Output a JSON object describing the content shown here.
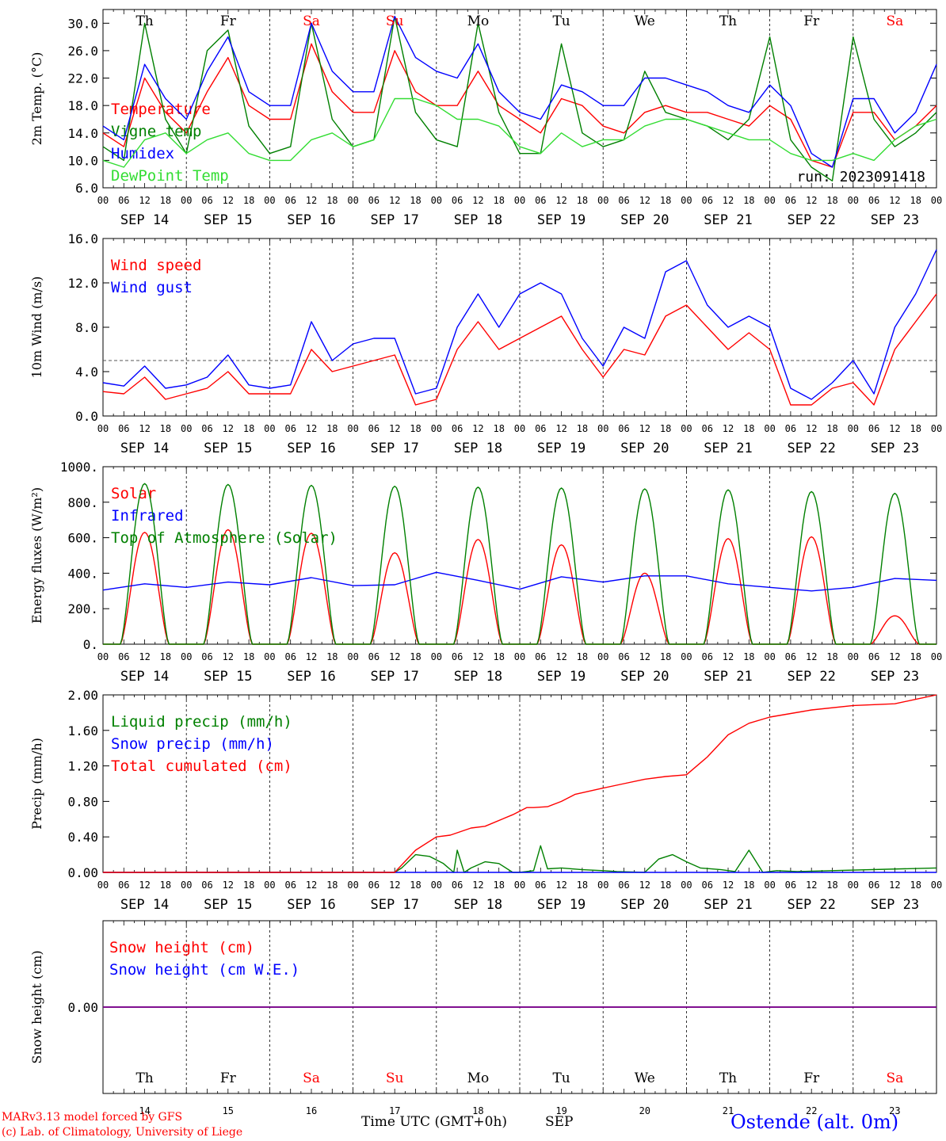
{
  "run_label": "run: 2023091418",
  "footer": {
    "model": "MARv3.13 model forced by GFS",
    "credit": "(c) Lab. of Climatology, University of Liege",
    "station": "Ostende (alt. 0m)",
    "xlabel": "Time UTC (GMT+0h)",
    "month": "SEP"
  },
  "days": {
    "names": [
      "Th",
      "Fr",
      "Sa",
      "Su",
      "Mo",
      "Tu",
      "We",
      "Th",
      "Fr",
      "Sa"
    ],
    "dates": [
      "SEP 14",
      "SEP 15",
      "SEP 16",
      "SEP 17",
      "SEP 18",
      "SEP 19",
      "SEP 20",
      "SEP 21",
      "SEP 22",
      "SEP 23"
    ],
    "numbers": [
      "14",
      "15",
      "16",
      "17",
      "18",
      "19",
      "20",
      "21",
      "22",
      "23"
    ],
    "hour_ticks": [
      "00",
      "06",
      "12",
      "18"
    ],
    "weekend_color": "#ff0000"
  },
  "colors": {
    "red": "#ff0000",
    "green": "#008000",
    "blue": "#0000ff",
    "lightgreen": "#33dd33",
    "purple": "#800080"
  },
  "chart_data": [
    {
      "type": "line",
      "id": "temp",
      "ylabel": "2m Temp. (°C)",
      "ylim": [
        6.0,
        32.0
      ],
      "yticks": [
        "6.0",
        "10.0",
        "14.0",
        "18.0",
        "22.0",
        "26.0",
        "30.0"
      ],
      "series": [
        {
          "name": "Temperature",
          "color": "#ff0000",
          "x": [
            0,
            6,
            12,
            18,
            24,
            30,
            36,
            42,
            48,
            54,
            60,
            66,
            72,
            78,
            84,
            90,
            96,
            102,
            108,
            114,
            120,
            126,
            132,
            138,
            144,
            150,
            156,
            162,
            168,
            174,
            180,
            186,
            192,
            198,
            204,
            210,
            216,
            222,
            228,
            234,
            240
          ],
          "y": [
            14,
            12,
            22,
            17,
            14,
            20,
            25,
            18,
            16,
            16,
            27,
            20,
            17,
            17,
            26,
            20,
            18,
            18,
            23,
            18,
            16,
            14,
            19,
            18,
            15,
            14,
            17,
            18,
            17,
            17,
            16,
            15,
            18,
            16,
            10,
            9,
            17,
            17,
            13,
            15,
            18
          ]
        },
        {
          "name": "Vigne temp",
          "color": "#008000",
          "x": [
            0,
            6,
            12,
            18,
            24,
            30,
            36,
            42,
            48,
            54,
            60,
            66,
            72,
            78,
            84,
            90,
            96,
            102,
            108,
            114,
            120,
            126,
            132,
            138,
            144,
            150,
            156,
            162,
            168,
            174,
            180,
            186,
            192,
            198,
            204,
            210,
            216,
            222,
            228,
            234,
            240
          ],
          "y": [
            12,
            10,
            30,
            16,
            11,
            26,
            29,
            15,
            11,
            12,
            30,
            16,
            12,
            13,
            31,
            17,
            13,
            12,
            30,
            17,
            11,
            11,
            27,
            14,
            12,
            13,
            23,
            17,
            16,
            15,
            13,
            16,
            28,
            13,
            9,
            7,
            28,
            16,
            12,
            14,
            17
          ]
        },
        {
          "name": "Humidex",
          "color": "#0000ff",
          "x": [
            0,
            6,
            12,
            18,
            24,
            30,
            36,
            42,
            48,
            54,
            60,
            66,
            72,
            78,
            84,
            90,
            96,
            102,
            108,
            114,
            120,
            126,
            132,
            138,
            144,
            150,
            156,
            162,
            168,
            174,
            180,
            186,
            192,
            198,
            204,
            210,
            216,
            222,
            228,
            234,
            240
          ],
          "y": [
            15,
            13,
            24,
            19,
            16,
            23,
            28,
            20,
            18,
            18,
            30,
            23,
            20,
            20,
            31,
            25,
            23,
            22,
            27,
            20,
            17,
            16,
            21,
            20,
            18,
            18,
            22,
            22,
            21,
            20,
            18,
            17,
            21,
            18,
            11,
            9,
            19,
            19,
            14,
            17,
            24
          ]
        },
        {
          "name": "DewPoint Temp",
          "color": "#33dd33",
          "x": [
            0,
            6,
            12,
            18,
            24,
            30,
            36,
            42,
            48,
            54,
            60,
            66,
            72,
            78,
            84,
            90,
            96,
            102,
            108,
            114,
            120,
            126,
            132,
            138,
            144,
            150,
            156,
            162,
            168,
            174,
            180,
            186,
            192,
            198,
            204,
            210,
            216,
            222,
            228,
            234,
            240
          ],
          "y": [
            10,
            9,
            13,
            14,
            11,
            13,
            14,
            11,
            10,
            10,
            13,
            14,
            12,
            13,
            19,
            19,
            18,
            16,
            16,
            15,
            12,
            11,
            14,
            12,
            13,
            13,
            15,
            16,
            16,
            15,
            14,
            13,
            13,
            11,
            10,
            10,
            11,
            10,
            13,
            15,
            16
          ]
        }
      ]
    },
    {
      "type": "line",
      "id": "wind",
      "ylabel": "10m Wind (m/s)",
      "ylim": [
        0,
        16
      ],
      "yticks": [
        "0.0",
        "4.0",
        "8.0",
        "12.0",
        "16.0"
      ],
      "reference_line": 5,
      "series": [
        {
          "name": "Wind speed",
          "color": "#ff0000",
          "x": [
            0,
            6,
            12,
            18,
            24,
            30,
            36,
            42,
            48,
            54,
            60,
            66,
            72,
            78,
            84,
            90,
            96,
            102,
            108,
            114,
            120,
            126,
            132,
            138,
            144,
            150,
            156,
            162,
            168,
            174,
            180,
            186,
            192,
            198,
            204,
            210,
            216,
            222,
            228,
            234,
            240
          ],
          "y": [
            2.2,
            2,
            3.5,
            1.5,
            2,
            2.5,
            4,
            2,
            2,
            2,
            6,
            4,
            4.5,
            5,
            5.5,
            1,
            1.5,
            6,
            8.5,
            6,
            7,
            8,
            9,
            6,
            3.5,
            6,
            5.5,
            9,
            10,
            8,
            6,
            7.5,
            6,
            1,
            1,
            2.5,
            3,
            1,
            6,
            8.5,
            11
          ]
        },
        {
          "name": "Wind gust",
          "color": "#0000ff",
          "x": [
            0,
            6,
            12,
            18,
            24,
            30,
            36,
            42,
            48,
            54,
            60,
            66,
            72,
            78,
            84,
            90,
            96,
            102,
            108,
            114,
            120,
            126,
            132,
            138,
            144,
            150,
            156,
            162,
            168,
            174,
            180,
            186,
            192,
            198,
            204,
            210,
            216,
            222,
            228,
            234,
            240
          ],
          "y": [
            3,
            2.7,
            4.5,
            2.5,
            2.8,
            3.5,
            5.5,
            2.8,
            2.5,
            2.8,
            8.5,
            5,
            6.5,
            7,
            7,
            2,
            2.5,
            8,
            11,
            8,
            11,
            12,
            11,
            7,
            4.5,
            8,
            7,
            13,
            14,
            10,
            8,
            9,
            8,
            2.5,
            1.5,
            3,
            5,
            2,
            8,
            11,
            15
          ]
        }
      ]
    },
    {
      "type": "line",
      "id": "energy",
      "ylabel": "Energy fluxes (W/m²)",
      "ylim": [
        0,
        1000
      ],
      "yticks": [
        "0.",
        "200.",
        "400.",
        "600.",
        "800.",
        "1000."
      ],
      "series": [
        {
          "name": "Solar",
          "color": "#ff0000",
          "peaks": [
            630,
            645,
            625,
            515,
            590,
            560,
            400,
            595,
            605,
            160
          ]
        },
        {
          "name": "Infrared",
          "color": "#0000ff",
          "x": [
            0,
            12,
            24,
            36,
            48,
            60,
            72,
            84,
            96,
            108,
            120,
            132,
            144,
            156,
            168,
            180,
            192,
            204,
            216,
            228,
            240
          ],
          "y": [
            305,
            340,
            320,
            350,
            335,
            375,
            330,
            335,
            405,
            360,
            310,
            380,
            350,
            385,
            385,
            340,
            320,
            300,
            320,
            370,
            360
          ]
        },
        {
          "name": "Top of Atmosphere (Solar)",
          "color": "#008000",
          "peaks": [
            905,
            900,
            895,
            890,
            885,
            880,
            875,
            870,
            860,
            850
          ]
        }
      ]
    },
    {
      "type": "line",
      "id": "precip",
      "ylabel": "Precip (mm/h)",
      "ylim": [
        0,
        2
      ],
      "yticks": [
        "0.00",
        "0.40",
        "0.80",
        "1.20",
        "1.60",
        "2.00"
      ],
      "series": [
        {
          "name": "Liquid precip (mm/h)",
          "color": "#008000",
          "x": [
            0,
            84,
            86,
            90,
            94,
            98,
            101,
            102,
            104,
            106,
            110,
            114,
            118,
            120,
            124,
            126,
            128,
            132,
            138,
            144,
            148,
            156,
            160,
            164,
            168,
            172,
            178,
            182,
            186,
            190,
            194,
            200,
            240
          ],
          "y": [
            0,
            0,
            0.05,
            0.2,
            0.18,
            0.1,
            0,
            0.25,
            0,
            0.05,
            0.12,
            0.1,
            0,
            0,
            0.02,
            0.3,
            0.04,
            0.05,
            0.03,
            0.02,
            0.01,
            0,
            0.15,
            0.2,
            0.12,
            0.05,
            0.03,
            0.01,
            0.25,
            0,
            0.02,
            0.01,
            0.05
          ]
        },
        {
          "name": "Snow precip (mm/h)",
          "color": "#0000ff",
          "x": [
            0,
            240
          ],
          "y": [
            0,
            0
          ]
        },
        {
          "name": "Total cumulated (cm)",
          "color": "#ff0000",
          "x": [
            0,
            84,
            90,
            96,
            100,
            106,
            110,
            118,
            122,
            124,
            128,
            132,
            136,
            144,
            150,
            156,
            162,
            168,
            174,
            180,
            186,
            192,
            204,
            216,
            228,
            234,
            240
          ],
          "y": [
            0,
            0,
            0.25,
            0.4,
            0.42,
            0.5,
            0.52,
            0.65,
            0.73,
            0.73,
            0.74,
            0.8,
            0.88,
            0.95,
            1.0,
            1.05,
            1.08,
            1.1,
            1.3,
            1.55,
            1.68,
            1.75,
            1.83,
            1.88,
            1.9,
            1.95,
            2.0
          ]
        }
      ]
    },
    {
      "type": "line",
      "id": "snow",
      "ylabel": "Snow height (cm)",
      "ylim": [
        -1,
        1
      ],
      "yticks": [
        "0.00"
      ],
      "series": [
        {
          "name": "Snow height (cm)",
          "color": "#ff0000",
          "x": [
            0,
            240
          ],
          "y": [
            0,
            0
          ]
        },
        {
          "name": "Snow height (cm W.E.)",
          "color": "#0000ff",
          "x": [
            0,
            240
          ],
          "y": [
            0,
            0
          ]
        }
      ]
    }
  ]
}
